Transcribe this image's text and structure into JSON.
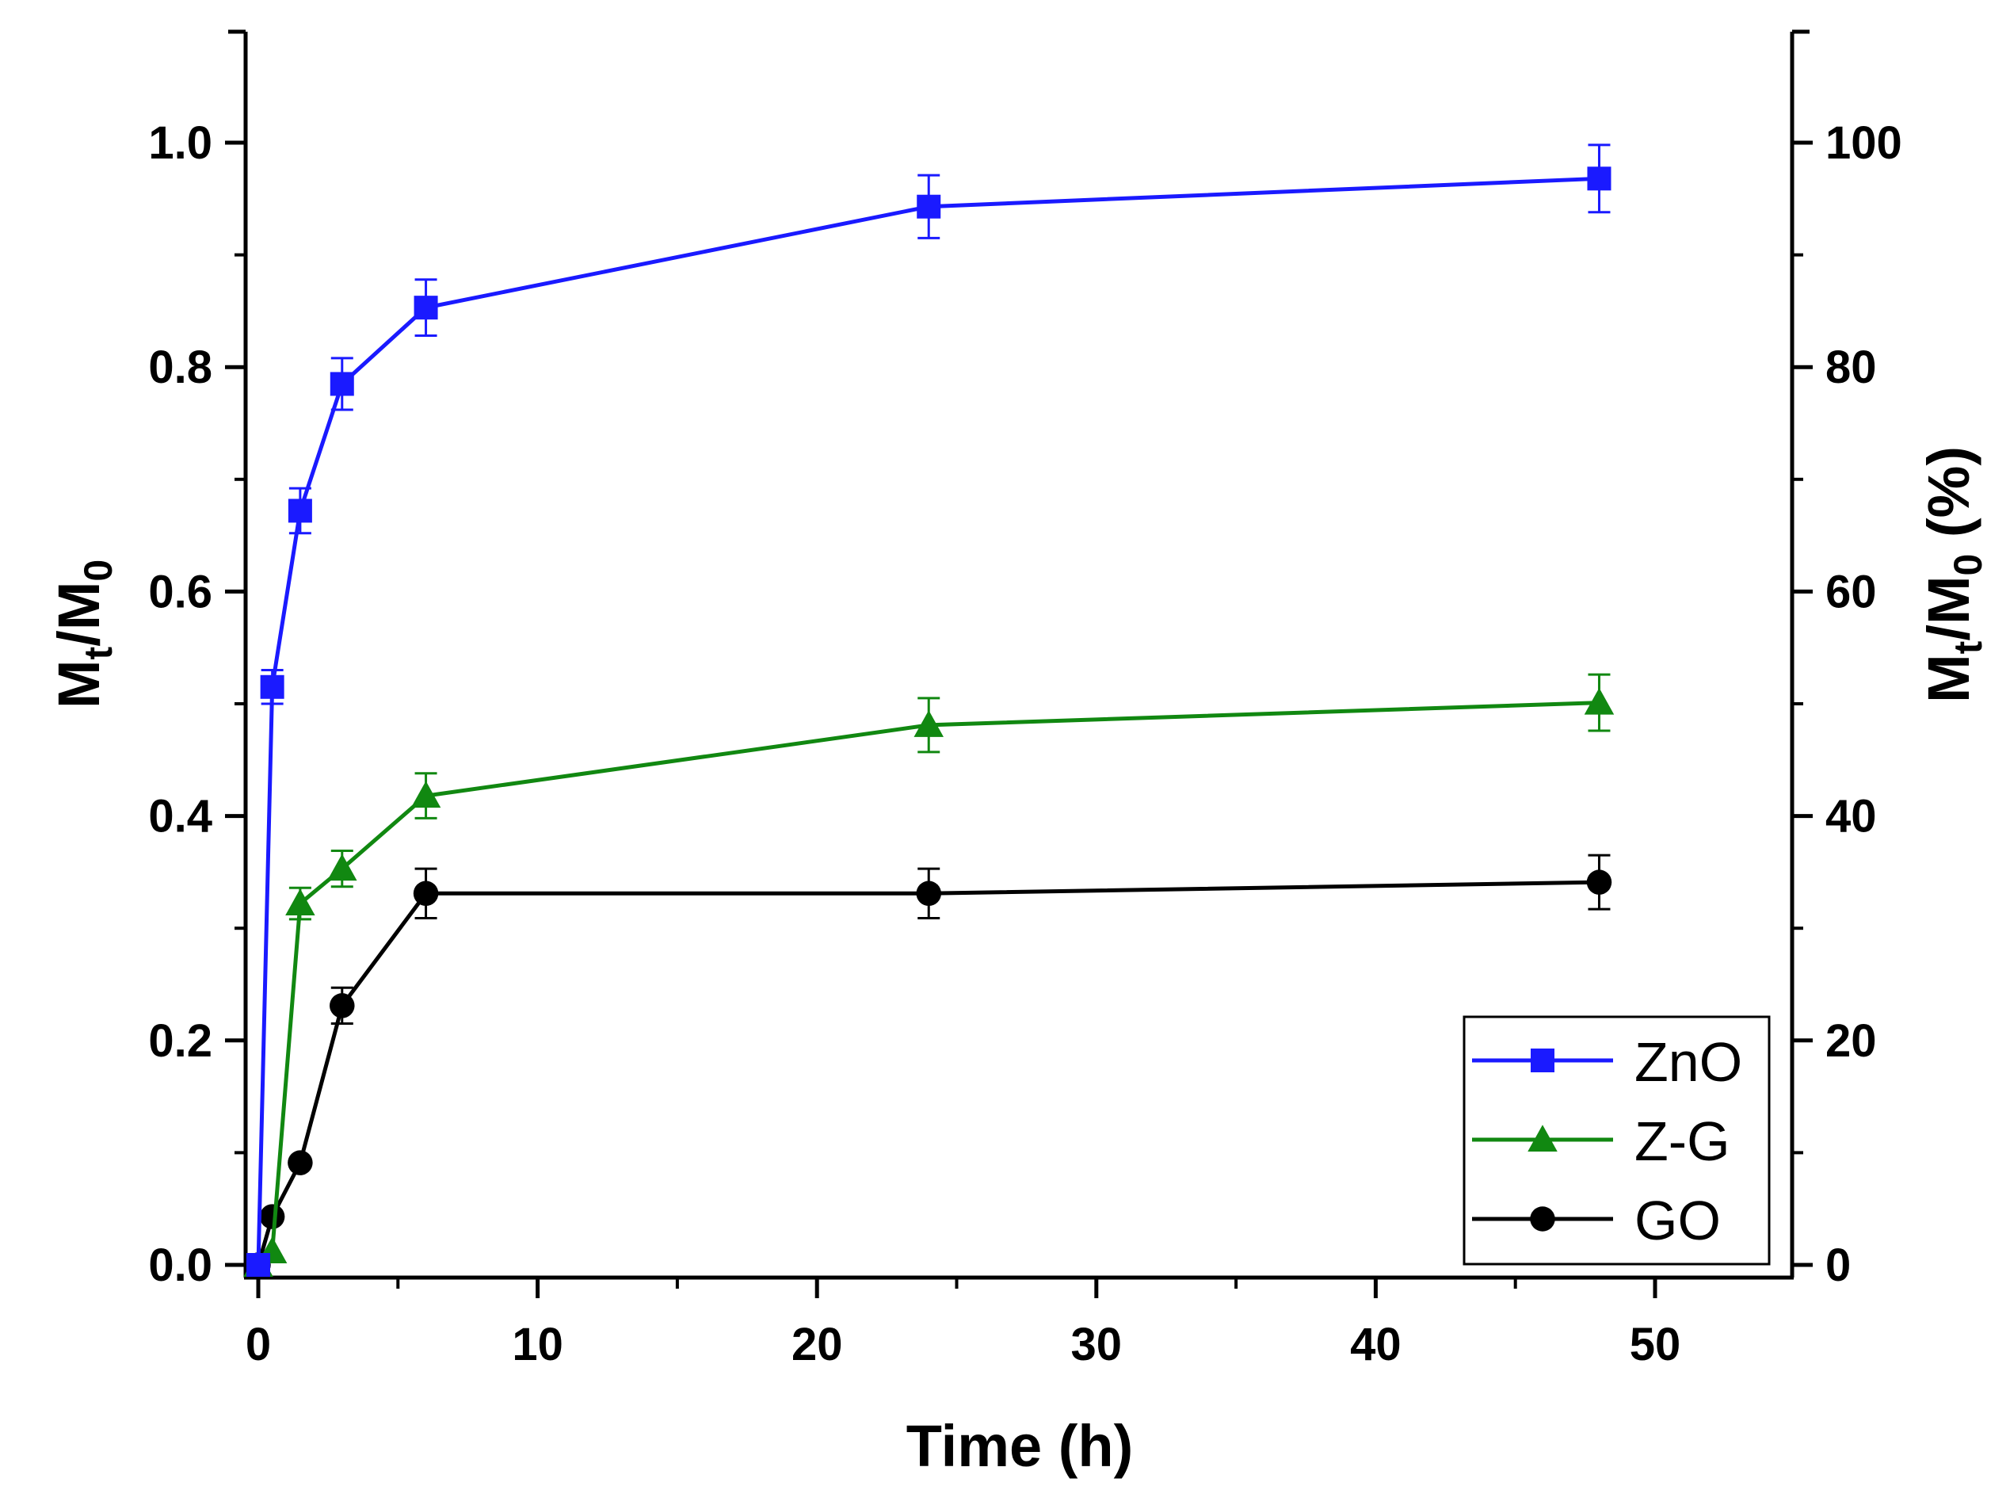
{
  "chart_data": {
    "type": "line",
    "xlabel": "Time (h)",
    "ylabel": {
      "main": "M",
      "sub1": "t",
      "sep": "/M",
      "sub2": "0"
    },
    "y2label": {
      "main": "M",
      "sub1": "t",
      "sep": "/M",
      "sub2": "0",
      "suffix": " (%)"
    },
    "xlim": [
      -1,
      55
    ],
    "ylim": [
      0,
      1.1
    ],
    "y2lim": [
      0,
      110
    ],
    "xticks": [
      0,
      10,
      20,
      30,
      40,
      50
    ],
    "xtick_labels": [
      "0",
      "10",
      "20",
      "30",
      "40",
      "50"
    ],
    "yticks": [
      0.0,
      0.2,
      0.4,
      0.6,
      0.8,
      1.0
    ],
    "ytick_labels": [
      "0.0",
      "0.2",
      "0.4",
      "0.6",
      "0.8",
      "1.0"
    ],
    "y2ticks": [
      0,
      20,
      40,
      60,
      80,
      100
    ],
    "y2tick_labels": [
      "0",
      "20",
      "40",
      "60",
      "80",
      "100"
    ],
    "legend_position": "bottom-right",
    "series": [
      {
        "name": "ZnO",
        "color": "#1a1aff",
        "marker": "square",
        "x": [
          0,
          0.5,
          1.5,
          3,
          6,
          24,
          48
        ],
        "y": [
          0.0,
          0.515,
          0.672,
          0.785,
          0.853,
          0.943,
          0.968
        ],
        "err": [
          0.0,
          0.015,
          0.02,
          0.023,
          0.025,
          0.028,
          0.03
        ]
      },
      {
        "name": "Z-G",
        "color": "#118811",
        "marker": "triangle",
        "x": [
          0,
          0.5,
          1.5,
          3,
          6,
          24,
          48
        ],
        "y": [
          0.0,
          0.012,
          0.322,
          0.353,
          0.418,
          0.481,
          0.501
        ],
        "err": [
          0.0,
          0.0,
          0.014,
          0.016,
          0.02,
          0.024,
          0.025
        ]
      },
      {
        "name": "GO",
        "color": "#000000",
        "marker": "circle",
        "x": [
          0,
          0.5,
          1.5,
          3,
          6,
          24,
          48
        ],
        "y": [
          0.0,
          0.043,
          0.091,
          0.231,
          0.331,
          0.331,
          0.341
        ],
        "err": [
          0.0,
          0.0,
          0.0,
          0.016,
          0.022,
          0.022,
          0.024
        ]
      }
    ]
  }
}
